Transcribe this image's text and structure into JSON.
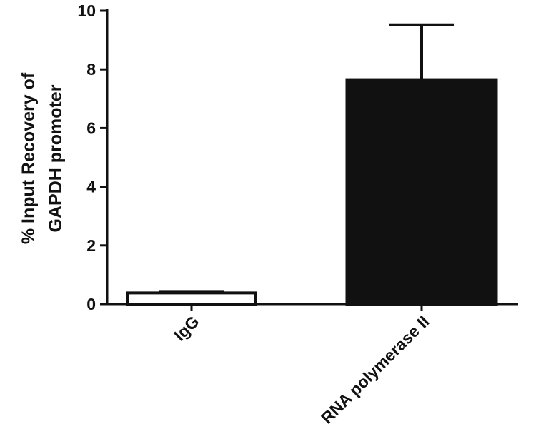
{
  "chart_data": {
    "type": "bar",
    "y_label": [
      "% Input Recovery of",
      "GAPDH promoter"
    ],
    "categories": [
      "IgG",
      "RNA polymerase II"
    ],
    "values": [
      0.38,
      7.65
    ],
    "errors": [
      0.05,
      1.87
    ],
    "colors": [
      "#ffffff",
      "#111111"
    ],
    "ylim": [
      0,
      10
    ],
    "yticks": [
      0,
      2,
      4,
      6,
      8,
      10
    ]
  }
}
